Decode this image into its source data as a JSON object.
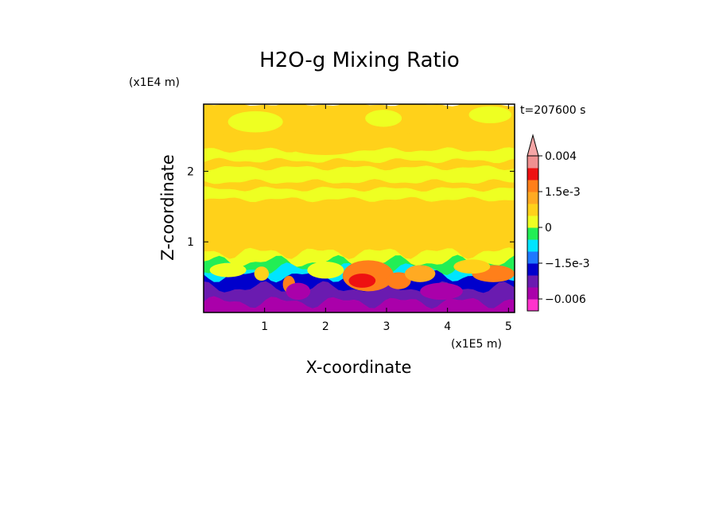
{
  "chart_data": {
    "type": "heatmap",
    "title": "H2O-g Mixing Ratio",
    "xlabel": "X-coordinate",
    "ylabel": "Z-coordinate",
    "x_unit": "(x1E5 m)",
    "y_unit": "(x1E4 m)",
    "time_label": "t=207600 s",
    "xlim": [
      0,
      5.1
    ],
    "ylim": [
      0,
      2.95
    ],
    "x_ticks": [
      1,
      2,
      3,
      4,
      5
    ],
    "y_ticks": [
      1,
      2
    ],
    "colorbar": {
      "labels": [
        "0.004",
        "1.5e-3",
        "0",
        "−1.5e-3",
        "−0.006"
      ],
      "label_levels": [
        0.004,
        0.0015,
        0,
        -0.0015,
        -0.006
      ],
      "levels": [
        -0.008,
        -0.006,
        -0.004,
        -0.002,
        -0.0015,
        -0.001,
        -0.0005,
        0,
        0.0005,
        0.001,
        0.0015,
        0.002,
        0.003,
        0.004
      ],
      "colors": [
        "#ff33cc",
        "#aa00aa",
        "#6a1bb0",
        "#0000cc",
        "#1e78ff",
        "#00e5ff",
        "#22ee55",
        "#eeff22",
        "#ffd11a",
        "#ffaa22",
        "#ff7f1a",
        "#ee1111",
        "#f09090",
        "#f5a6a6"
      ],
      "extend": "max"
    },
    "layers": [
      {
        "z_top": 0.15,
        "level": -0.006
      },
      {
        "z_top": 0.35,
        "level": -0.004
      },
      {
        "z_top": 0.52,
        "level": -0.002
      },
      {
        "z_top": 0.62,
        "level": -0.001
      },
      {
        "z_top": 0.72,
        "level": -0.0005
      },
      {
        "z_top": 0.85,
        "level": 0
      },
      {
        "z_top": 0.95,
        "level": 0.0005
      },
      {
        "z_top": 1.6,
        "level": 0.0005
      },
      {
        "z_top": 1.75,
        "level": 0
      },
      {
        "z_top": 1.85,
        "level": 0.0005
      },
      {
        "z_top": 2.05,
        "level": 0
      },
      {
        "z_top": 2.15,
        "level": 0.0005
      },
      {
        "z_top": 2.3,
        "level": 0
      },
      {
        "z_top": 2.55,
        "level": 0.0005
      },
      {
        "z_top": 2.95,
        "level": 0.0005
      }
    ],
    "features": [
      {
        "x": 2.7,
        "z": 0.52,
        "rx": 0.42,
        "rz": 0.22,
        "level": 0.0015
      },
      {
        "x": 2.6,
        "z": 0.45,
        "rx": 0.22,
        "rz": 0.1,
        "level": 0.002
      },
      {
        "x": 3.2,
        "z": 0.45,
        "rx": 0.2,
        "rz": 0.12,
        "level": 0.0015
      },
      {
        "x": 3.55,
        "z": 0.55,
        "rx": 0.25,
        "rz": 0.12,
        "level": 0.001
      },
      {
        "x": 4.75,
        "z": 0.55,
        "rx": 0.35,
        "rz": 0.12,
        "level": 0.0015
      },
      {
        "x": 4.4,
        "z": 0.65,
        "rx": 0.3,
        "rz": 0.1,
        "level": 0.0005
      },
      {
        "x": 1.4,
        "z": 0.4,
        "rx": 0.1,
        "rz": 0.12,
        "level": 0.0015
      },
      {
        "x": 0.95,
        "z": 0.55,
        "rx": 0.12,
        "rz": 0.1,
        "level": 0.0005
      },
      {
        "x": 0.4,
        "z": 0.6,
        "rx": 0.3,
        "rz": 0.1,
        "level": 0
      },
      {
        "x": 2.0,
        "z": 0.6,
        "rx": 0.3,
        "rz": 0.12,
        "level": 0
      },
      {
        "x": 1.55,
        "z": 0.3,
        "rx": 0.2,
        "rz": 0.12,
        "level": -0.006
      },
      {
        "x": 3.9,
        "z": 0.3,
        "rx": 0.35,
        "rz": 0.12,
        "level": -0.006
      },
      {
        "x": 0.85,
        "z": 2.7,
        "rx": 0.45,
        "rz": 0.15,
        "level": 0
      },
      {
        "x": 2.95,
        "z": 2.75,
        "rx": 0.3,
        "rz": 0.12,
        "level": 0
      },
      {
        "x": 4.7,
        "z": 2.8,
        "rx": 0.35,
        "rz": 0.12,
        "level": 0
      },
      {
        "x": 2.0,
        "z": 2.35,
        "rx": 0.6,
        "rz": 0.12,
        "level": 0.0005
      },
      {
        "x": 4.4,
        "z": 2.5,
        "rx": 0.5,
        "rz": 0.1,
        "level": 0.0005
      },
      {
        "x": 1.3,
        "z": 2.5,
        "rx": 0.3,
        "rz": 0.08,
        "level": 0.0005
      }
    ]
  }
}
